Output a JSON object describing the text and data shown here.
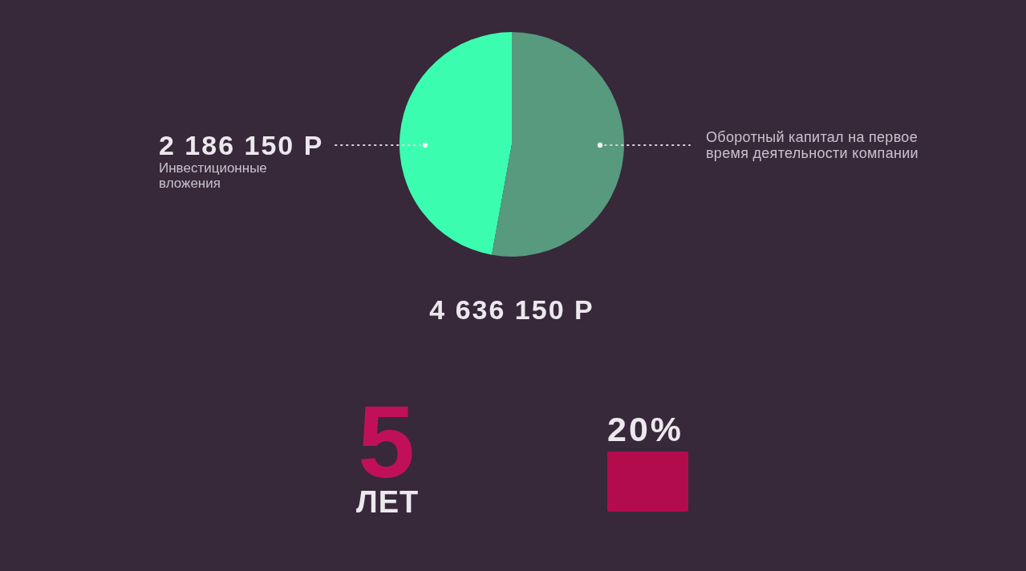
{
  "chart_data": [
    {
      "type": "pie",
      "categories": [
        "Инвестиционные вложения",
        "Оборотный капитал на первое время деятельности компании"
      ],
      "values": [
        2186150,
        2450000
      ],
      "colors": [
        "#3bfdb0",
        "#579a7e"
      ],
      "value_labels": [
        "2 186 150 Р",
        null
      ],
      "annotations": [
        "4 636 150 Р"
      ]
    },
    {
      "type": "other",
      "annotations": [
        "5",
        "ЛЕТ",
        "20%"
      ]
    }
  ]
}
